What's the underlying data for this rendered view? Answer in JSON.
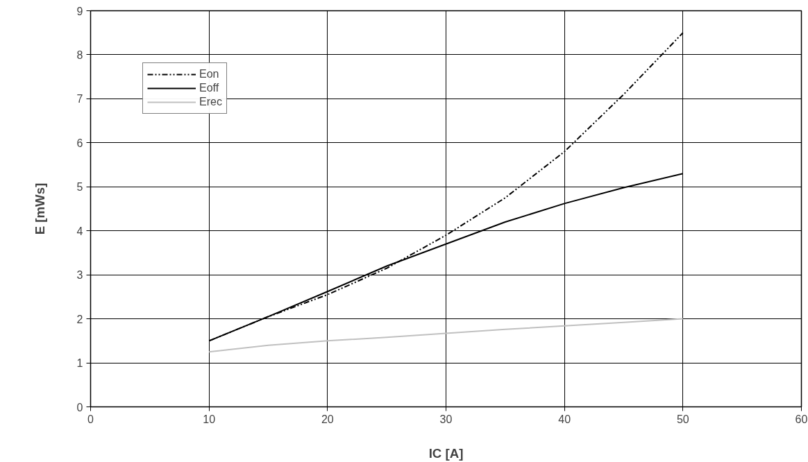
{
  "chart_data": {
    "type": "line",
    "xlabel": "IC [A]",
    "ylabel": "E [mWs]",
    "xlim": [
      0,
      60
    ],
    "xticks": [
      0,
      10,
      20,
      30,
      40,
      50,
      60
    ],
    "ylim": [
      0,
      9
    ],
    "yticks": [
      0,
      1,
      2,
      3,
      4,
      5,
      6,
      7,
      8,
      9
    ],
    "grid": true,
    "legend": "top left",
    "series": [
      {
        "name": "Eon",
        "color": "#000000",
        "line_style": "dashed",
        "x": [
          10,
          15,
          20,
          25,
          30,
          35,
          40,
          45,
          50
        ],
        "values": [
          1.5,
          2.05,
          2.55,
          3.15,
          3.9,
          4.75,
          5.8,
          7.1,
          8.5
        ]
      },
      {
        "name": "Eoff",
        "color": "#000000",
        "line_style": "solid",
        "x": [
          10,
          15,
          20,
          25,
          30,
          35,
          40,
          45,
          50
        ],
        "values": [
          1.5,
          2.05,
          2.62,
          3.2,
          3.7,
          4.2,
          4.62,
          4.98,
          5.3
        ]
      },
      {
        "name": "Erec",
        "color": "#c0c0c0",
        "line_style": "solid",
        "x": [
          10,
          15,
          20,
          25,
          30,
          35,
          40,
          45,
          50
        ],
        "values": [
          1.25,
          1.4,
          1.5,
          1.58,
          1.67,
          1.76,
          1.84,
          1.92,
          2.0
        ]
      }
    ]
  }
}
